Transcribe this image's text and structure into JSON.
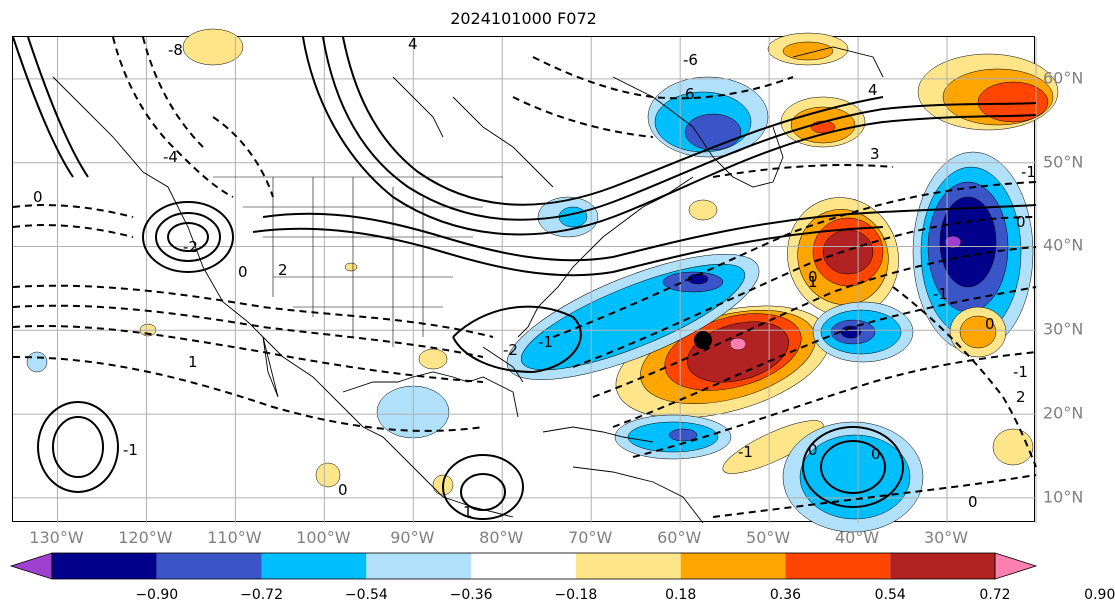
{
  "title": "2024101000 F072",
  "map": {
    "projection": "cylindrical",
    "lon_labels": [
      "130°W",
      "120°W",
      "110°W",
      "100°W",
      "90°W",
      "80°W",
      "70°W",
      "60°W",
      "50°W",
      "40°W",
      "30°W"
    ],
    "lat_labels": [
      "60°N",
      "50°N",
      "40°N",
      "30°N",
      "20°N",
      "10°N"
    ],
    "contour_labels": [
      "-8",
      "4",
      "-6",
      "6",
      "4",
      "3",
      "-4",
      "0",
      "-2",
      "2",
      "0",
      "1",
      "0",
      "-1",
      "-2",
      "-1",
      "0",
      "-1",
      "0",
      "1",
      "-1",
      "2",
      "0",
      "-1",
      "0",
      "-1",
      "1",
      "0",
      "0"
    ],
    "features": [
      "coastlines",
      "country borders",
      "US state borders",
      "lat-lon grid"
    ],
    "marker": "black-dot",
    "shading_colors": {
      "below_-0.90": "#a040d0",
      "-0.90_-0.72": "#00008b",
      "-0.72_-0.54": "#3a55c8",
      "-0.54_-0.36": "#00bfff",
      "-0.36_-0.18": "#b0e0fa",
      "-0.18_0.18": "#ffffff",
      "0.18_0.36": "#ffe58a",
      "0.36_0.54": "#ffa500",
      "0.54_0.72": "#ff4500",
      "0.72_0.90": "#b22222",
      "above_0.90": "#ff80b0"
    }
  },
  "colorbar": {
    "ticks": [
      "−0.90",
      "−0.72",
      "−0.54",
      "−0.36",
      "−0.18",
      "0.18",
      "0.36",
      "0.54",
      "0.72",
      "0.90"
    ],
    "colors": [
      "#a040d0",
      "#00008b",
      "#3a55c8",
      "#00bfff",
      "#b0e0fa",
      "#ffffff",
      "#ffe58a",
      "#ffa500",
      "#ff4500",
      "#b22222",
      "#ff80b0"
    ],
    "extend": "both"
  }
}
